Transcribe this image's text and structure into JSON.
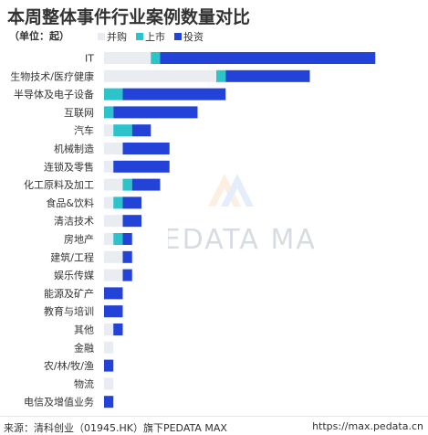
{
  "header": {
    "title": "本周整体事件行业案例数量对比",
    "unit": "（单位：起）"
  },
  "colors": {
    "bingou": "#e9ecf1",
    "shangshi": "#2cc3cb",
    "touzi": "#2342d8"
  },
  "chart_data": {
    "type": "bar",
    "orientation": "horizontal",
    "stacked": true,
    "categories": [
      "IT",
      "生物技术/医疗健康",
      "半导体及电子设备",
      "互联网",
      "汽车",
      "机械制造",
      "连锁及零售",
      "化工原料及加工",
      "食品&饮料",
      "清洁技术",
      "房地产",
      "建筑/工程",
      "娱乐传媒",
      "能源及矿产",
      "教育与培训",
      "其他",
      "金融",
      "农/林/牧/渔",
      "物流",
      "电信及增值业务"
    ],
    "series": [
      {
        "name": "并购",
        "values": [
          5,
          12,
          0,
          0,
          1,
          2,
          1,
          2,
          1,
          2,
          1,
          2,
          2,
          0,
          0,
          1,
          1,
          0,
          1,
          0
        ]
      },
      {
        "name": "上市",
        "values": [
          1,
          1,
          2,
          1,
          2,
          0,
          0,
          1,
          1,
          0,
          1,
          0,
          0,
          0,
          0,
          0,
          0,
          0,
          0,
          0
        ]
      },
      {
        "name": "投资",
        "values": [
          23,
          9,
          11,
          9,
          2,
          5,
          6,
          3,
          2,
          2,
          1,
          1,
          1,
          2,
          2,
          1,
          0,
          1,
          0,
          1
        ]
      }
    ],
    "legend_position": "top-left",
    "grid": false
  },
  "watermark": {
    "text": "PEDATA MAX"
  },
  "footer": {
    "source": "来源：清科创业（01945.HK）旗下PEDATA MAX",
    "url": "https://max.pedata.cn"
  }
}
